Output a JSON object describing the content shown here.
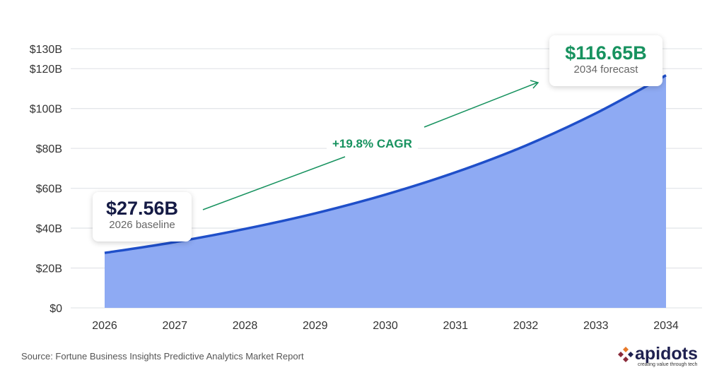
{
  "chart_data": {
    "type": "area",
    "x": [
      "2026",
      "2027",
      "2028",
      "2029",
      "2030",
      "2031",
      "2032",
      "2033",
      "2034"
    ],
    "values": [
      27.56,
      33.0,
      39.6,
      47.4,
      56.8,
      68.0,
      81.4,
      97.6,
      116.65
    ],
    "ylim": [
      0,
      130
    ],
    "yticks": [
      0,
      20,
      40,
      60,
      80,
      100,
      120,
      130
    ],
    "ytick_labels": [
      "$0",
      "$20B",
      "$40B",
      "$60B",
      "$80B",
      "$100B",
      "$120B",
      "$130B"
    ],
    "grid": true,
    "colors": {
      "fill": "#8eaaf3",
      "line": "#1f4fc9",
      "annotation": "#17925f"
    },
    "annotations": {
      "start": {
        "value": "$27.56B",
        "label": "2026 baseline"
      },
      "end": {
        "value": "$116.65B",
        "label": "2034 forecast"
      },
      "growth": "+19.8% CAGR"
    }
  },
  "source": "Source: Fortune Business Insights Predictive Analytics Market Report",
  "logo": {
    "name": "apidots",
    "tagline": "creating value through tech"
  }
}
